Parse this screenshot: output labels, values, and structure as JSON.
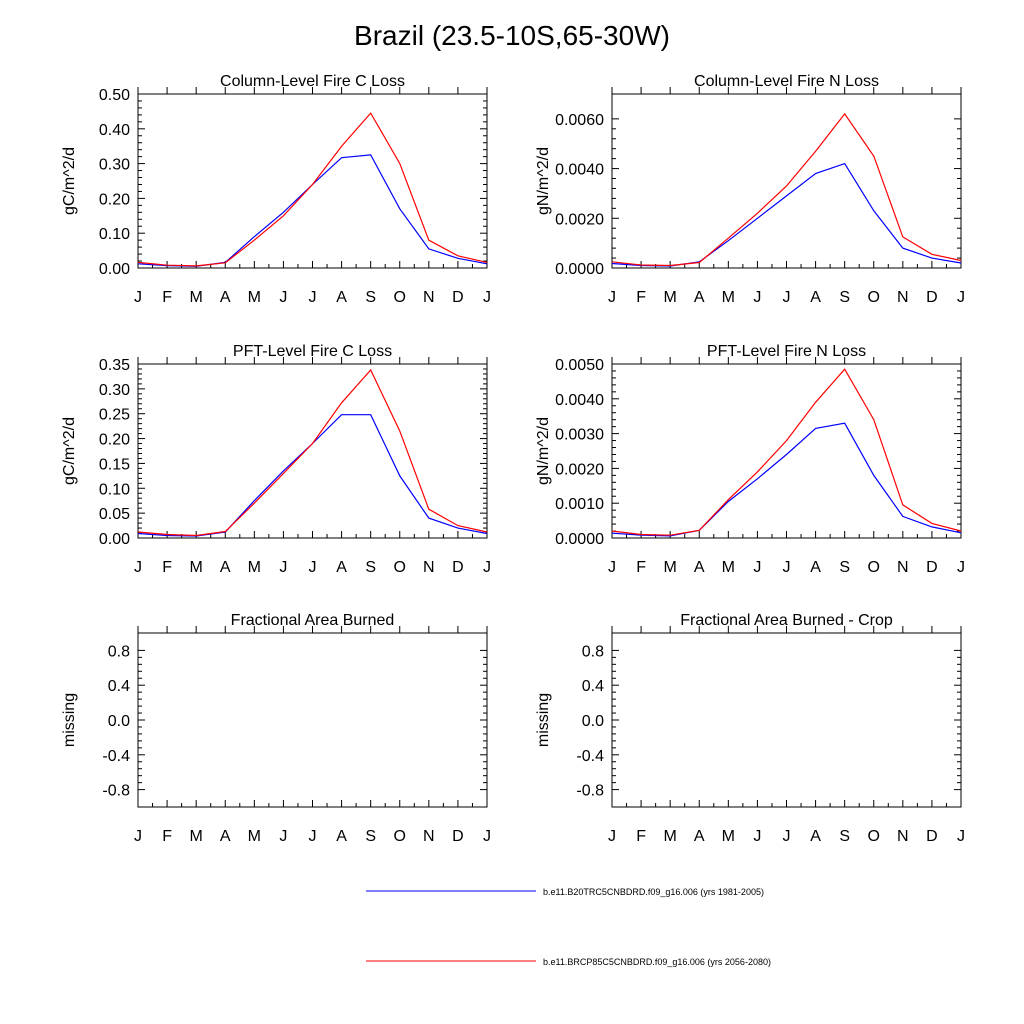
{
  "page_title": "Brazil (23.5-10S,65-30W)",
  "colors": {
    "series_current": "#0000ff",
    "series_future": "#ff0000",
    "axis": "#000000"
  },
  "legend": [
    {
      "label": "b.e11.B20TRC5CNBDRD.f09_g16.006 (yrs 1981-2005)",
      "color": "#0000ff"
    },
    {
      "label": "b.e11.BRCP85C5CNBDRD.f09_g16.006 (yrs 2056-2080)",
      "color": "#ff0000"
    }
  ],
  "chart_data": [
    {
      "type": "line",
      "title": "Column-Level Fire C Loss",
      "xlabel": "",
      "ylabel": "gC/m^2/d",
      "categories": [
        "J",
        "F",
        "M",
        "A",
        "M",
        "J",
        "J",
        "A",
        "S",
        "O",
        "N",
        "D",
        "J"
      ],
      "ylim": [
        0,
        0.5
      ],
      "yticks": [
        0,
        0.1,
        0.2,
        0.3,
        0.4,
        0.5
      ],
      "ytick_labels": [
        "0.00",
        "0.10",
        "0.20",
        "0.30",
        "0.40",
        "0.50"
      ],
      "series": [
        {
          "name": "b.e11.B20TRC5CNBDRD.f09_g16.006 (yrs 1981-2005)",
          "color": "#0000ff",
          "values": [
            0.012,
            0.007,
            0.005,
            0.016,
            0.09,
            0.16,
            0.24,
            0.317,
            0.325,
            0.17,
            0.055,
            0.028,
            0.012
          ]
        },
        {
          "name": "b.e11.BRCP85C5CNBDRD.f09_g16.006 (yrs 2056-2080)",
          "color": "#ff0000",
          "values": [
            0.016,
            0.008,
            0.006,
            0.015,
            0.08,
            0.15,
            0.24,
            0.35,
            0.445,
            0.3,
            0.08,
            0.035,
            0.016
          ]
        }
      ]
    },
    {
      "type": "line",
      "title": "Column-Level Fire N Loss",
      "xlabel": "",
      "ylabel": "gN/m^2/d",
      "categories": [
        "J",
        "F",
        "M",
        "A",
        "M",
        "J",
        "J",
        "A",
        "S",
        "O",
        "N",
        "D",
        "J"
      ],
      "ylim": [
        0,
        0.007
      ],
      "yticks": [
        0,
        0.002,
        0.004,
        0.006
      ],
      "ytick_labels": [
        "0.0000",
        "0.0020",
        "0.0040",
        "0.0060"
      ],
      "series": [
        {
          "name": "b.e11.B20TRC5CNBDRD.f09_g16.006 (yrs 1981-2005)",
          "color": "#0000ff",
          "values": [
            0.00018,
            0.0001,
            8e-05,
            0.00025,
            0.0011,
            0.002,
            0.0029,
            0.0038,
            0.0042,
            0.0023,
            0.0008,
            0.0004,
            0.0002
          ]
        },
        {
          "name": "b.e11.BRCP85C5CNBDRD.f09_g16.006 (yrs 2056-2080)",
          "color": "#ff0000",
          "values": [
            0.00025,
            0.00012,
            0.0001,
            0.00022,
            0.0012,
            0.0022,
            0.0033,
            0.0047,
            0.0062,
            0.0045,
            0.00125,
            0.00055,
            0.0003
          ]
        }
      ]
    },
    {
      "type": "line",
      "title": "PFT-Level Fire C Loss",
      "xlabel": "",
      "ylabel": "gC/m^2/d",
      "categories": [
        "J",
        "F",
        "M",
        "A",
        "M",
        "J",
        "J",
        "A",
        "S",
        "O",
        "N",
        "D",
        "J"
      ],
      "ylim": [
        0,
        0.35
      ],
      "yticks": [
        0,
        0.05,
        0.1,
        0.15,
        0.2,
        0.25,
        0.3,
        0.35
      ],
      "ytick_labels": [
        "0.00",
        "0.05",
        "0.10",
        "0.15",
        "0.20",
        "0.25",
        "0.30",
        "0.35"
      ],
      "series": [
        {
          "name": "b.e11.B20TRC5CNBDRD.f09_g16.006 (yrs 1981-2005)",
          "color": "#0000ff",
          "values": [
            0.009,
            0.005,
            0.004,
            0.012,
            0.075,
            0.135,
            0.19,
            0.248,
            0.248,
            0.125,
            0.04,
            0.02,
            0.009
          ]
        },
        {
          "name": "b.e11.BRCP85C5CNBDRD.f09_g16.006 (yrs 2056-2080)",
          "color": "#ff0000",
          "values": [
            0.012,
            0.007,
            0.005,
            0.013,
            0.07,
            0.13,
            0.19,
            0.272,
            0.338,
            0.215,
            0.058,
            0.025,
            0.012
          ]
        }
      ]
    },
    {
      "type": "line",
      "title": "PFT-Level Fire N Loss",
      "xlabel": "",
      "ylabel": "gN/m^2/d",
      "categories": [
        "J",
        "F",
        "M",
        "A",
        "M",
        "J",
        "J",
        "A",
        "S",
        "O",
        "N",
        "D",
        "J"
      ],
      "ylim": [
        0,
        0.005
      ],
      "yticks": [
        0,
        0.001,
        0.002,
        0.003,
        0.004,
        0.005
      ],
      "ytick_labels": [
        "0.0000",
        "0.0010",
        "0.0020",
        "0.0030",
        "0.0040",
        "0.0050"
      ],
      "series": [
        {
          "name": "b.e11.B20TRC5CNBDRD.f09_g16.006 (yrs 1981-2005)",
          "color": "#0000ff",
          "values": [
            0.00014,
            8e-05,
            6e-05,
            0.00022,
            0.00105,
            0.0017,
            0.0024,
            0.00315,
            0.0033,
            0.0018,
            0.00062,
            0.00032,
            0.00015
          ]
        },
        {
          "name": "b.e11.BRCP85C5CNBDRD.f09_g16.006 (yrs 2056-2080)",
          "color": "#ff0000",
          "values": [
            0.0002,
            0.0001,
            8e-05,
            0.00022,
            0.0011,
            0.0019,
            0.0028,
            0.0039,
            0.00485,
            0.0034,
            0.00095,
            0.00042,
            0.0002
          ]
        }
      ]
    },
    {
      "type": "line",
      "title": "Fractional Area Burned",
      "xlabel": "",
      "ylabel": "missing",
      "categories": [
        "J",
        "F",
        "M",
        "A",
        "M",
        "J",
        "J",
        "A",
        "S",
        "O",
        "N",
        "D",
        "J"
      ],
      "ylim": [
        -1,
        1
      ],
      "yticks": [
        -0.8,
        -0.4,
        0,
        0.4,
        0.8
      ],
      "ytick_labels": [
        "-0.8",
        "-0.4",
        "0.0",
        "0.4",
        "0.8"
      ],
      "series": []
    },
    {
      "type": "line",
      "title": "Fractional Area Burned - Crop",
      "xlabel": "",
      "ylabel": "missing",
      "categories": [
        "J",
        "F",
        "M",
        "A",
        "M",
        "J",
        "J",
        "A",
        "S",
        "O",
        "N",
        "D",
        "J"
      ],
      "ylim": [
        -1,
        1
      ],
      "yticks": [
        -0.8,
        -0.4,
        0,
        0.4,
        0.8
      ],
      "ytick_labels": [
        "-0.8",
        "-0.4",
        "0.0",
        "0.4",
        "0.8"
      ],
      "series": []
    }
  ]
}
